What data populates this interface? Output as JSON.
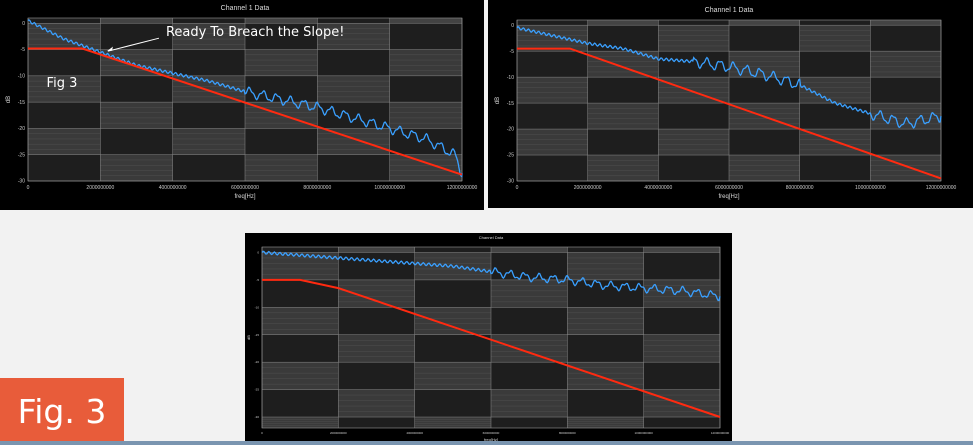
{
  "fig_badge": "Fig. 3",
  "chart_data": [
    {
      "type": "line",
      "title": "Channel 1 Data",
      "xlabel": "freq[Hz]",
      "ylabel": "dB",
      "xlim": [
        0,
        12000000000
      ],
      "ylim": [
        -30,
        1
      ],
      "x_ticks": [
        {
          "value": 0,
          "label": "0"
        },
        {
          "value": 2000000000,
          "label": "2000000000"
        },
        {
          "value": 4000000000,
          "label": "4000000000"
        },
        {
          "value": 6000000000,
          "label": "6000000000"
        },
        {
          "value": 8000000000,
          "label": "8000000000"
        },
        {
          "value": 10000000000,
          "label": "10000000000"
        },
        {
          "value": 12000000000,
          "label": "12000000000"
        }
      ],
      "y_ticks": [
        {
          "value": 0,
          "label": "0"
        },
        {
          "value": -5,
          "label": "-5"
        },
        {
          "value": -10,
          "label": "-10"
        },
        {
          "value": -15,
          "label": "-15"
        },
        {
          "value": -20,
          "label": "-20"
        },
        {
          "value": -25,
          "label": "-25"
        },
        {
          "value": -30,
          "label": "-30"
        }
      ],
      "annotations": [
        {
          "text": "Ready To Breach the Slope!",
          "x": 2100000000,
          "y": -5.5
        },
        {
          "text": "Fig 3",
          "x": 900000000,
          "y": -11
        }
      ],
      "grid": true,
      "series": [
        {
          "color": "#3aa0ff",
          "x": [
            0,
            1000000000,
            2000000000,
            3000000000,
            4000000000,
            5000000000,
            6000000000,
            7000000000,
            8000000000,
            9000000000,
            10000000000,
            11000000000,
            11800000000,
            12000000000
          ],
          "y": [
            0.5,
            -3,
            -5.5,
            -8,
            -9.5,
            -11,
            -13,
            -14.5,
            -16,
            -18,
            -20,
            -22,
            -25,
            -28.5
          ],
          "ripple": [
            [
              6000000000,
              12000000000,
              0.8
            ]
          ]
        },
        {
          "color": "#ff2a10",
          "x": [
            0,
            1500000000,
            12000000000
          ],
          "y": [
            -4.8,
            -4.8,
            -28.8
          ]
        }
      ]
    },
    {
      "type": "line",
      "title": "Channel 1 Data",
      "xlabel": "freq[Hz]",
      "ylabel": "dB",
      "xlim": [
        0,
        12000000000
      ],
      "ylim": [
        -30,
        1
      ],
      "x_ticks": [
        {
          "value": 0,
          "label": "0"
        },
        {
          "value": 2000000000,
          "label": "2000000000"
        },
        {
          "value": 4000000000,
          "label": "4000000000"
        },
        {
          "value": 6000000000,
          "label": "6000000000"
        },
        {
          "value": 8000000000,
          "label": "8000000000"
        },
        {
          "value": 10000000000,
          "label": "10000000000"
        },
        {
          "value": 12000000000,
          "label": "12000000000"
        }
      ],
      "y_ticks": [
        {
          "value": 0,
          "label": "0"
        },
        {
          "value": -5,
          "label": "-5"
        },
        {
          "value": -10,
          "label": "-10"
        },
        {
          "value": -15,
          "label": "-15"
        },
        {
          "value": -20,
          "label": "-20"
        },
        {
          "value": -25,
          "label": "-25"
        },
        {
          "value": -30,
          "label": "-30"
        }
      ],
      "annotations": [],
      "grid": true,
      "series": [
        {
          "color": "#3aa0ff",
          "x": [
            0,
            1000000000,
            2000000000,
            3000000000,
            4000000000,
            5000000000,
            6000000000,
            7000000000,
            8000000000,
            9000000000,
            10000000000,
            11000000000,
            12000000000
          ],
          "y": [
            -0.5,
            -2,
            -3.5,
            -4.5,
            -6.5,
            -7,
            -8,
            -9.5,
            -11.5,
            -15,
            -17,
            -19,
            -17.5
          ],
          "ripple": [
            [
              5000000000,
              8000000000,
              0.9
            ],
            [
              10000000000,
              12000000000,
              0.9
            ]
          ]
        },
        {
          "color": "#ff2a10",
          "x": [
            0,
            1500000000,
            12000000000
          ],
          "y": [
            -4.5,
            -4.5,
            -29.5
          ]
        }
      ]
    },
    {
      "type": "line",
      "title": "Channel Data",
      "xlabel": "freq[Hz]",
      "ylabel": "dB",
      "xlim": [
        0,
        12000000000
      ],
      "ylim": [
        -32,
        1
      ],
      "x_ticks": [
        {
          "value": 0,
          "label": "0"
        },
        {
          "value": 2000000000,
          "label": "2000000000"
        },
        {
          "value": 4000000000,
          "label": "4000000000"
        },
        {
          "value": 6000000000,
          "label": "6000000000"
        },
        {
          "value": 8000000000,
          "label": "8000000000"
        },
        {
          "value": 10000000000,
          "label": "10000000000"
        },
        {
          "value": 12000000000,
          "label": "12000000000"
        }
      ],
      "y_ticks": [
        {
          "value": 0,
          "label": "0"
        },
        {
          "value": -5,
          "label": "-5"
        },
        {
          "value": -10,
          "label": "-10"
        },
        {
          "value": -15,
          "label": "-15"
        },
        {
          "value": -20,
          "label": "-20"
        },
        {
          "value": -25,
          "label": "-25"
        },
        {
          "value": -30,
          "label": "-30"
        }
      ],
      "annotations": [],
      "grid": true,
      "series": [
        {
          "color": "#3aa0ff",
          "x": [
            0,
            1000000000,
            2000000000,
            3000000000,
            4000000000,
            5000000000,
            6000000000,
            7000000000,
            8000000000,
            9000000000,
            10000000000,
            11000000000,
            12000000000
          ],
          "y": [
            0,
            -0.5,
            -1,
            -1.5,
            -2,
            -2.5,
            -3.5,
            -4.5,
            -5,
            -6,
            -6.5,
            -7,
            -8
          ],
          "ripple": [
            [
              6000000000,
              12000000000,
              0.6
            ]
          ]
        },
        {
          "color": "#ff2a10",
          "x": [
            0,
            1000000000,
            2000000000,
            12000000000
          ],
          "y": [
            -5,
            -5,
            -6.5,
            -30
          ]
        }
      ]
    }
  ]
}
